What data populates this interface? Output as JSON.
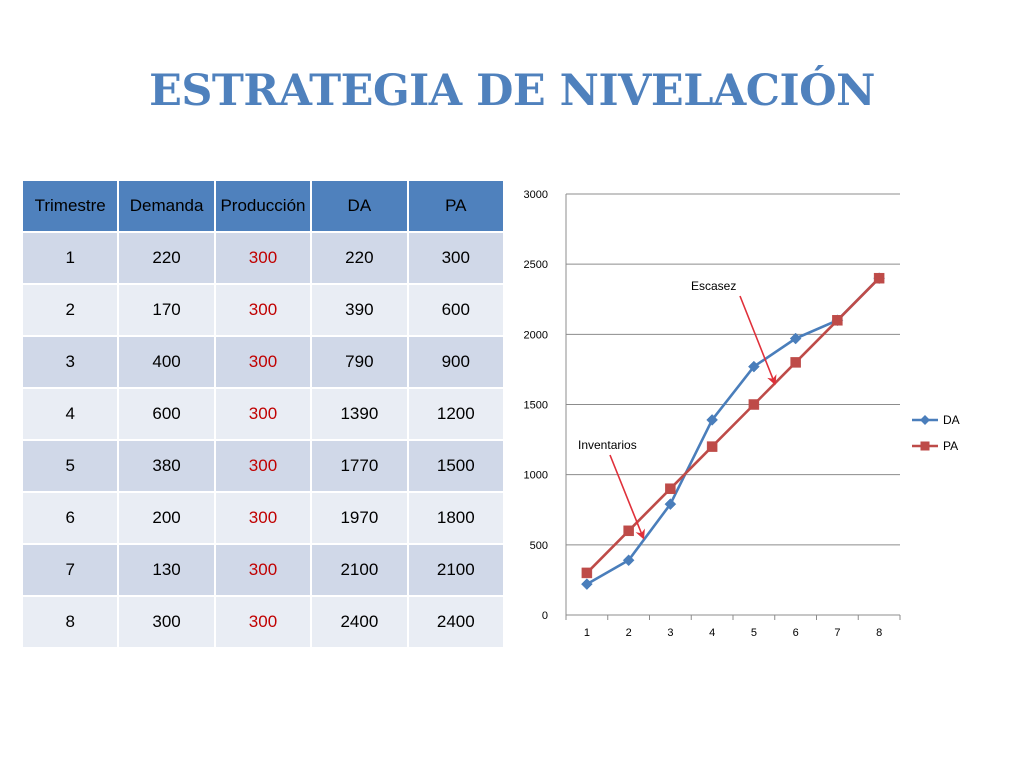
{
  "title": "ESTRATEGIA DE NIVELACIÓN",
  "colors": {
    "title": "#4f81bd",
    "header_bg": "#4f81bd",
    "row_dark": "#d0d8e8",
    "row_light": "#e9edf4",
    "produccion_text": "#c00000",
    "series_da": "#4a7ebb",
    "series_pa": "#be4b48",
    "annotation_arrow": "#e0303a"
  },
  "table": {
    "headers": [
      "Trimestre",
      "Demanda",
      "Producción",
      "DA",
      "PA"
    ],
    "rows": [
      [
        "1",
        "220",
        "300",
        "220",
        "300"
      ],
      [
        "2",
        "170",
        "300",
        "390",
        "600"
      ],
      [
        "3",
        "400",
        "300",
        "790",
        "900"
      ],
      [
        "4",
        "600",
        "300",
        "1390",
        "1200"
      ],
      [
        "5",
        "380",
        "300",
        "1770",
        "1500"
      ],
      [
        "6",
        "200",
        "300",
        "1970",
        "1800"
      ],
      [
        "7",
        "130",
        "300",
        "2100",
        "2100"
      ],
      [
        "8",
        "300",
        "300",
        "2400",
        "2400"
      ]
    ]
  },
  "chart_data": {
    "type": "line",
    "x": [
      "1",
      "2",
      "3",
      "4",
      "5",
      "6",
      "7",
      "8"
    ],
    "series": [
      {
        "name": "DA",
        "values": [
          220,
          390,
          790,
          1390,
          1770,
          1970,
          2100,
          2400
        ],
        "color": "#4a7ebb",
        "marker": "diamond"
      },
      {
        "name": "PA",
        "values": [
          300,
          600,
          900,
          1200,
          1500,
          1800,
          2100,
          2400
        ],
        "color": "#be4b48",
        "marker": "square"
      }
    ],
    "ylim": [
      0,
      3000
    ],
    "yticks": [
      0,
      500,
      1000,
      1500,
      2000,
      2500,
      3000
    ],
    "grid": true,
    "legend_position": "right",
    "annotations": [
      {
        "text": "Escasez",
        "target_x": 5.5,
        "target_y": 1650
      },
      {
        "text": "Inventarios",
        "target_x": 2.35,
        "target_y": 550
      }
    ]
  }
}
